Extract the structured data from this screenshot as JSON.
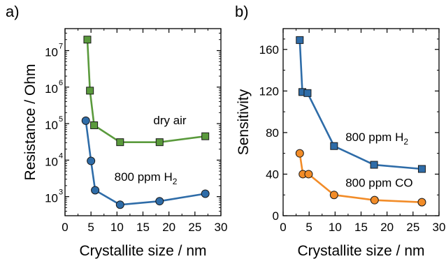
{
  "chart_data": [
    {
      "type": "line",
      "panel_label": "a)",
      "xlabel": "Crystallite size / nm",
      "ylabel": "Resistance / Ohm",
      "xlim": [
        0,
        30
      ],
      "ylim": [
        300,
        40000000
      ],
      "yscale": "log",
      "xticks": [
        0,
        5,
        10,
        15,
        20,
        25,
        30
      ],
      "yticks": [
        1000,
        10000,
        100000,
        1000000,
        10000000
      ],
      "ytick_labels": [
        {
          "base": "10",
          "exp": "3"
        },
        {
          "base": "10",
          "exp": "4"
        },
        {
          "base": "10",
          "exp": "5"
        },
        {
          "base": "10",
          "exp": "6"
        },
        {
          "base": "10",
          "exp": "7"
        }
      ],
      "series": [
        {
          "name": "dry air",
          "marker": "square",
          "color": "#5a9a3c",
          "x": [
            4.3,
            4.8,
            5.6,
            10.6,
            18.2,
            27.0
          ],
          "y": [
            20000000,
            800000,
            90000,
            31000,
            31000,
            45000
          ]
        },
        {
          "name": "800 ppm H2",
          "marker": "circle",
          "color": "#2e6ca8",
          "x": [
            4.0,
            5.0,
            5.8,
            10.6,
            18.2,
            27.0
          ],
          "y": [
            120000,
            9500,
            1500,
            600,
            750,
            1200
          ]
        }
      ],
      "annotations": [
        {
          "text": "dry air",
          "x": 17,
          "y": 95000
        },
        {
          "text": "800 ppm H",
          "sub": "2",
          "x": 9.5,
          "y": 2700
        }
      ]
    },
    {
      "type": "line",
      "panel_label": "b)",
      "xlabel": "Crystallite size / nm",
      "ylabel": "Sensitivity",
      "xlim": [
        0,
        30
      ],
      "ylim": [
        0,
        180
      ],
      "xticks": [
        0,
        5,
        10,
        15,
        20,
        25,
        30
      ],
      "yticks": [
        0,
        40,
        80,
        120,
        160
      ],
      "series": [
        {
          "name": "800 ppm H2",
          "marker": "square",
          "color": "#2e6ca8",
          "x": [
            3.2,
            3.7,
            4.7,
            9.8,
            17.5,
            26.7
          ],
          "y": [
            169,
            119,
            118,
            67,
            49,
            45
          ]
        },
        {
          "name": "800 ppm CO",
          "marker": "circle",
          "color": "#f28c28",
          "x": [
            3.2,
            3.8,
            4.9,
            9.8,
            17.6,
            26.7
          ],
          "y": [
            60,
            40,
            40,
            20,
            15,
            13
          ]
        }
      ],
      "annotations": [
        {
          "text": "800 ppm H",
          "sub": "2",
          "x": 12,
          "y": 72
        },
        {
          "text": "800 ppm CO",
          "x": 12,
          "y": 28
        }
      ]
    }
  ]
}
